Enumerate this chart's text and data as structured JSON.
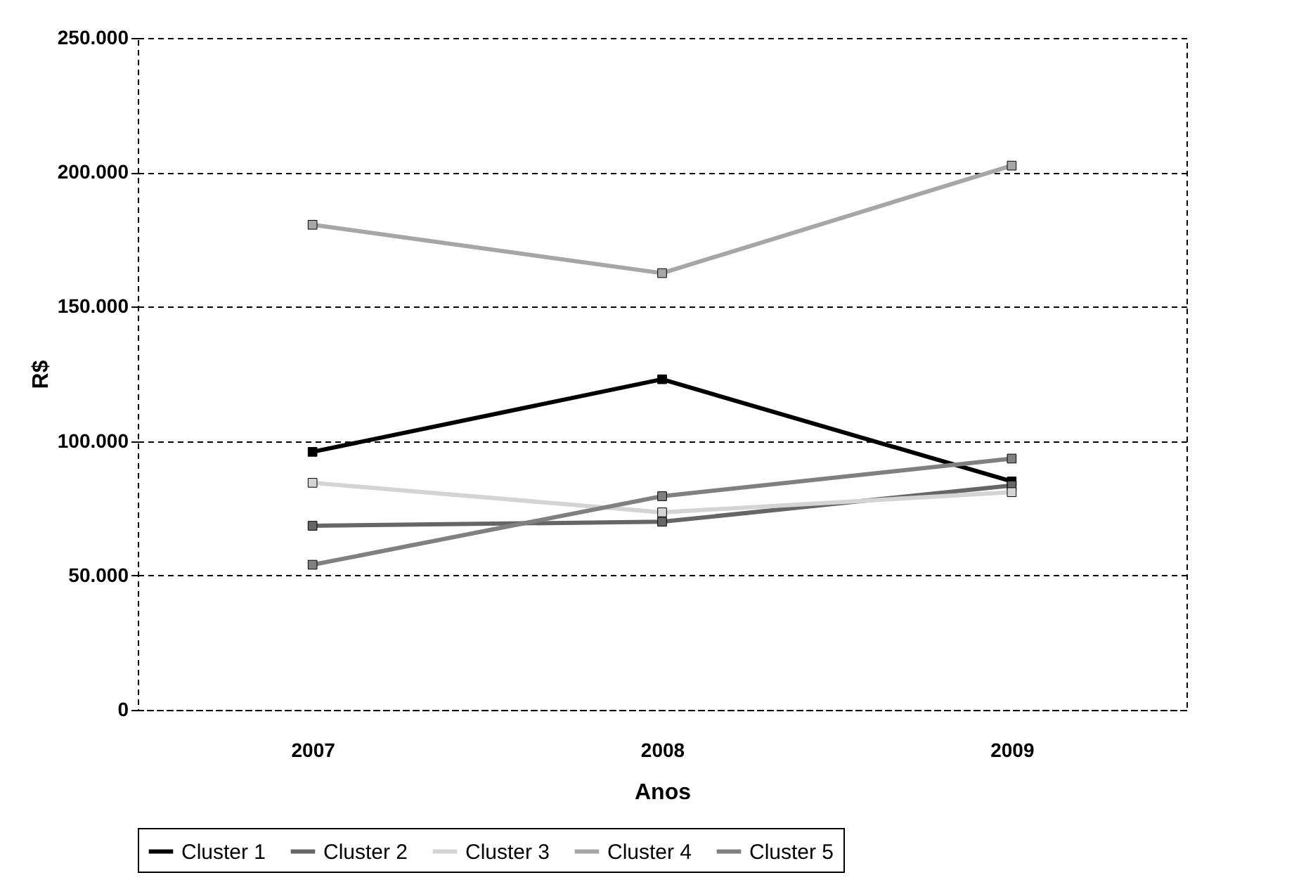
{
  "chart_data": {
    "type": "line",
    "xlabel": "Anos",
    "ylabel": "R$",
    "categories": [
      "2007",
      "2008",
      "2009"
    ],
    "series": [
      {
        "name": "Cluster 1",
        "color": "#000000",
        "values": [
          96000,
          123000,
          85000
        ]
      },
      {
        "name": "Cluster 2",
        "color": "#666666",
        "values": [
          68500,
          70000,
          83500
        ]
      },
      {
        "name": "Cluster 3",
        "color": "#d4d4d4",
        "values": [
          84500,
          73500,
          81000
        ]
      },
      {
        "name": "Cluster 4",
        "color": "#a6a6a6",
        "values": [
          180500,
          162500,
          202500
        ]
      },
      {
        "name": "Cluster 5",
        "color": "#808080",
        "values": [
          54000,
          79500,
          93500
        ]
      }
    ],
    "ylim": [
      0,
      250000
    ],
    "yticks": [
      {
        "value": 0,
        "label": "0"
      },
      {
        "value": 50000,
        "label": "50.000"
      },
      {
        "value": 100000,
        "label": "100.000"
      },
      {
        "value": 150000,
        "label": "150.000"
      },
      {
        "value": 200000,
        "label": "200.000"
      },
      {
        "value": 250000,
        "label": "250.000"
      }
    ],
    "grid": "y",
    "legend": "bottom",
    "marker": "square",
    "line_style": "solid"
  }
}
